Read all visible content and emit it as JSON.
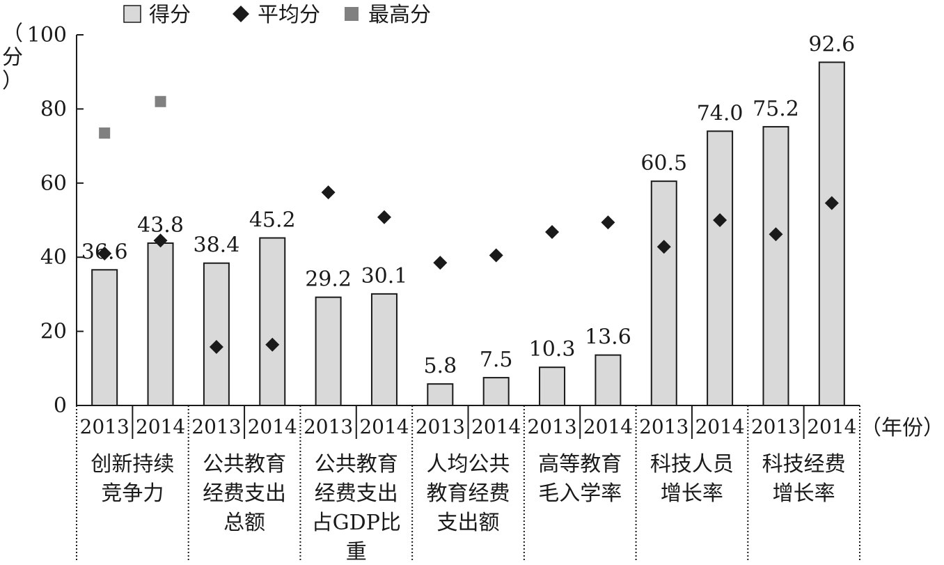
{
  "chart_data": {
    "type": "bar",
    "ylabel": "（分）",
    "xlabel_suffix": "（年份）",
    "ylim": [
      0,
      100
    ],
    "yticks": [
      0,
      20,
      40,
      60,
      80,
      100
    ],
    "grid": false,
    "legend_position": "top",
    "legend": [
      {
        "label": "得分",
        "marker": "bar",
        "color": "#d9d9d9"
      },
      {
        "label": "平均分",
        "marker": "diamond",
        "color": "#1a1a1a"
      },
      {
        "label": "最高分",
        "marker": "square",
        "color": "#808080"
      }
    ],
    "groups": [
      {
        "name": "创新持续竞争力",
        "name_lines": [
          "创新持续",
          "竞争力"
        ]
      },
      {
        "name": "公共教育经费支出总额",
        "name_lines": [
          "公共教育",
          "经费支出",
          "总额"
        ]
      },
      {
        "name": "公共教育经费支出占GDP比重",
        "name_lines": [
          "公共教育",
          "经费支出",
          "占GDP比",
          "重"
        ]
      },
      {
        "name": "人均公共教育经费支出额",
        "name_lines": [
          "人均公共",
          "教育经费",
          "支出额"
        ]
      },
      {
        "name": "高等教育毛入学率",
        "name_lines": [
          "高等教育",
          "毛入学率"
        ]
      },
      {
        "name": "科技人员增长率",
        "name_lines": [
          "科技人员",
          "增长率"
        ]
      },
      {
        "name": "科技经费增长率",
        "name_lines": [
          "科技经费",
          "增长率"
        ]
      }
    ],
    "years": [
      "2013",
      "2014"
    ],
    "series": [
      {
        "name": "得分",
        "values": [
          36.6,
          43.8,
          38.4,
          45.2,
          29.2,
          30.1,
          5.8,
          7.5,
          10.3,
          13.6,
          60.5,
          74.0,
          75.2,
          92.6
        ],
        "labels": [
          "36.6",
          "43.8",
          "38.4",
          "45.2",
          "29.2",
          "30.1",
          "5.8",
          "7.5",
          "10.3",
          "13.6",
          "60.5",
          "74.0",
          "75.2",
          "92.6"
        ]
      },
      {
        "name": "平均分",
        "values": [
          41.0,
          44.5,
          15.8,
          16.4,
          57.5,
          50.8,
          38.5,
          40.5,
          46.8,
          49.4,
          42.8,
          50.0,
          46.2,
          54.6
        ]
      },
      {
        "name": "最高分",
        "values": [
          73.5,
          82.0,
          null,
          null,
          null,
          null,
          null,
          null,
          null,
          null,
          null,
          null,
          null,
          null
        ]
      }
    ]
  }
}
